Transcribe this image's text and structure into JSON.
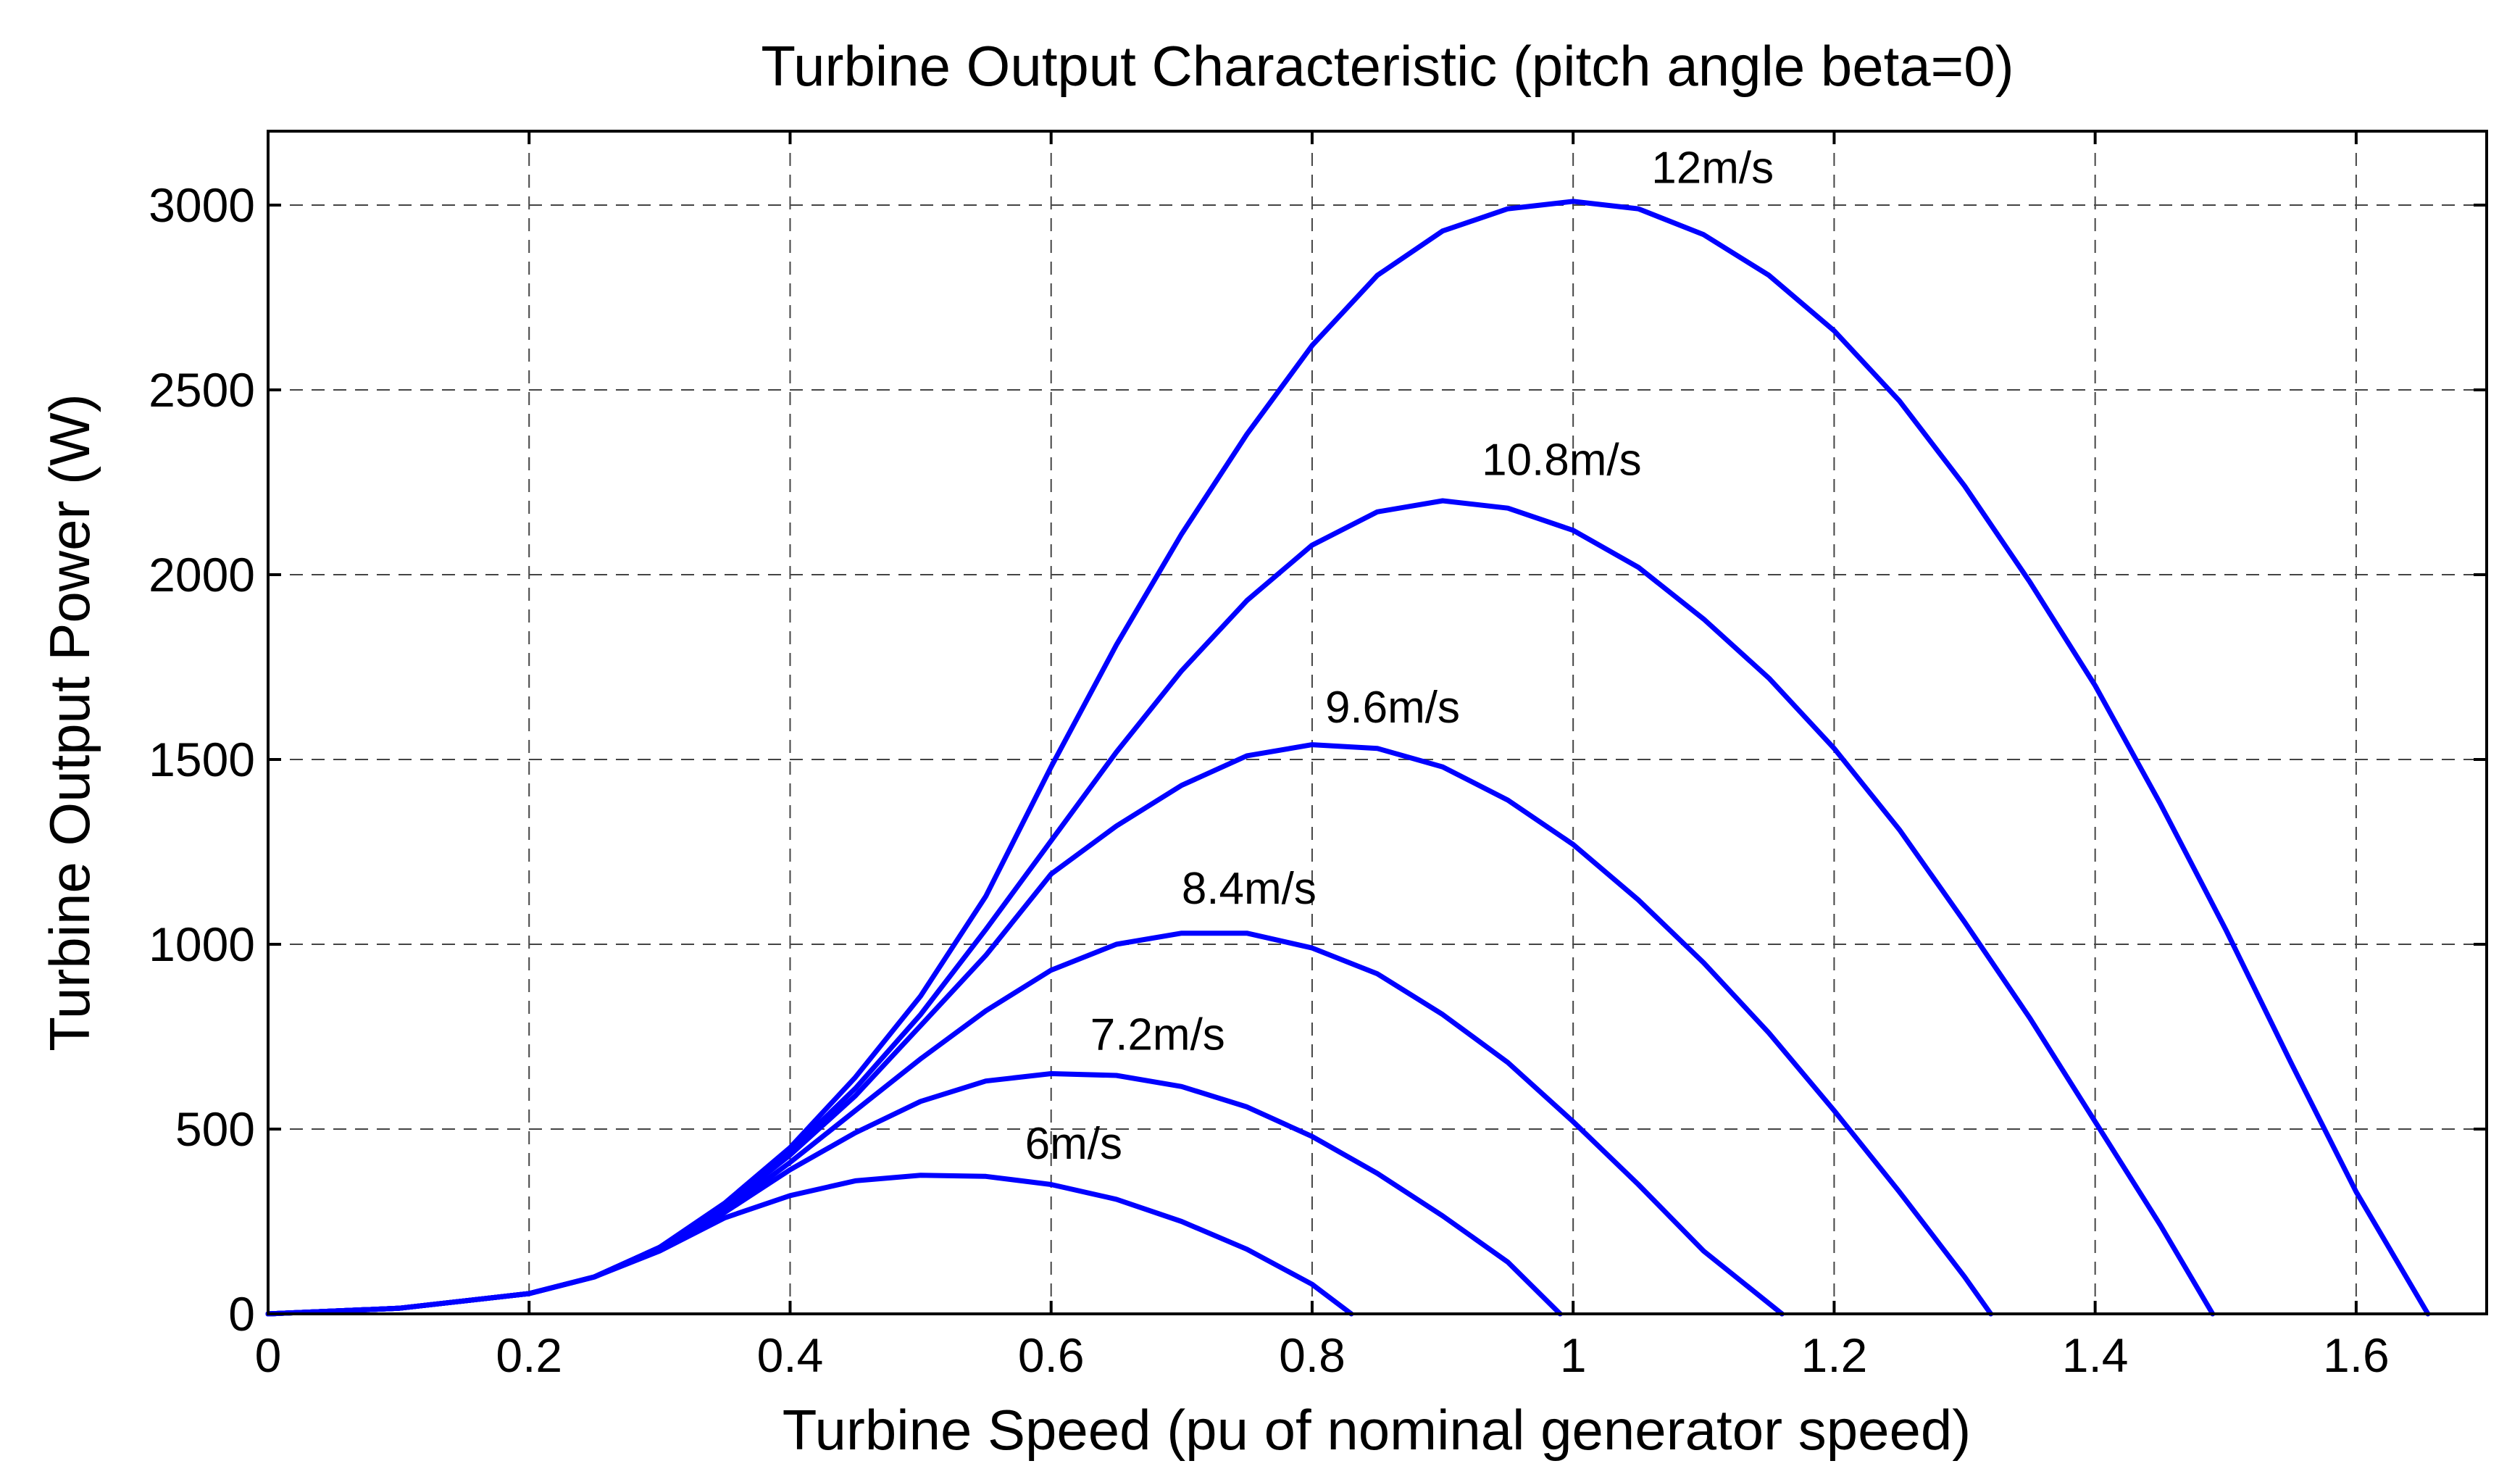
{
  "chart_data": {
    "type": "line",
    "title": "Turbine Output Characteristic (pitch angle beta=0)",
    "xlabel": "Turbine Speed (pu of nominal generator speed)",
    "ylabel": "Turbine Output Power (W)",
    "xlim": [
      0,
      1.7
    ],
    "ylim": [
      0,
      3200
    ],
    "xticks": [
      0,
      0.2,
      0.4,
      0.6,
      0.8,
      1.0,
      1.2,
      1.4,
      1.6
    ],
    "xtick_labels": [
      "0",
      "0.2",
      "0.4",
      "0.6",
      "0.8",
      "1",
      "1.2",
      "1.4",
      "1.6"
    ],
    "yticks": [
      0,
      500,
      1000,
      1500,
      2000,
      2500,
      3000
    ],
    "ytick_labels": [
      "0",
      "500",
      "1000",
      "1500",
      "2000",
      "2500",
      "3000"
    ],
    "grid": true,
    "line_color": "#0000ff",
    "series": [
      {
        "name": "6m/s",
        "label_at": [
          0.58,
          420
        ],
        "points": [
          [
            0,
            0
          ],
          [
            0.1,
            15
          ],
          [
            0.2,
            55
          ],
          [
            0.25,
            100
          ],
          [
            0.3,
            170
          ],
          [
            0.35,
            260
          ],
          [
            0.4,
            320
          ],
          [
            0.45,
            360
          ],
          [
            0.5,
            375
          ],
          [
            0.55,
            372
          ],
          [
            0.6,
            350
          ],
          [
            0.65,
            310
          ],
          [
            0.7,
            250
          ],
          [
            0.75,
            175
          ],
          [
            0.8,
            80
          ],
          [
            0.83,
            0
          ]
        ]
      },
      {
        "name": "7.2m/s",
        "label_at": [
          0.63,
          715
        ],
        "points": [
          [
            0,
            0
          ],
          [
            0.1,
            15
          ],
          [
            0.2,
            55
          ],
          [
            0.25,
            100
          ],
          [
            0.3,
            175
          ],
          [
            0.35,
            275
          ],
          [
            0.4,
            390
          ],
          [
            0.45,
            490
          ],
          [
            0.5,
            575
          ],
          [
            0.55,
            630
          ],
          [
            0.6,
            650
          ],
          [
            0.65,
            645
          ],
          [
            0.7,
            615
          ],
          [
            0.75,
            560
          ],
          [
            0.8,
            480
          ],
          [
            0.85,
            380
          ],
          [
            0.9,
            265
          ],
          [
            0.95,
            140
          ],
          [
            0.99,
            0
          ]
        ]
      },
      {
        "name": "8.4m/s",
        "label_at": [
          0.7,
          1110
        ],
        "points": [
          [
            0,
            0
          ],
          [
            0.1,
            15
          ],
          [
            0.2,
            55
          ],
          [
            0.25,
            100
          ],
          [
            0.3,
            180
          ],
          [
            0.35,
            280
          ],
          [
            0.4,
            410
          ],
          [
            0.45,
            550
          ],
          [
            0.5,
            690
          ],
          [
            0.55,
            820
          ],
          [
            0.6,
            930
          ],
          [
            0.65,
            1000
          ],
          [
            0.7,
            1030
          ],
          [
            0.75,
            1030
          ],
          [
            0.8,
            990
          ],
          [
            0.85,
            920
          ],
          [
            0.9,
            810
          ],
          [
            0.95,
            680
          ],
          [
            1.0,
            520
          ],
          [
            1.05,
            350
          ],
          [
            1.1,
            170
          ],
          [
            1.16,
            0
          ]
        ]
      },
      {
        "name": "9.6m/s",
        "label_at": [
          0.81,
          1600
        ],
        "points": [
          [
            0,
            0
          ],
          [
            0.1,
            15
          ],
          [
            0.2,
            55
          ],
          [
            0.25,
            100
          ],
          [
            0.3,
            180
          ],
          [
            0.35,
            290
          ],
          [
            0.4,
            430
          ],
          [
            0.45,
            590
          ],
          [
            0.5,
            780
          ],
          [
            0.55,
            970
          ],
          [
            0.6,
            1190
          ],
          [
            0.65,
            1320
          ],
          [
            0.7,
            1430
          ],
          [
            0.75,
            1510
          ],
          [
            0.8,
            1540
          ],
          [
            0.85,
            1530
          ],
          [
            0.9,
            1480
          ],
          [
            0.95,
            1390
          ],
          [
            1.0,
            1270
          ],
          [
            1.05,
            1120
          ],
          [
            1.1,
            950
          ],
          [
            1.15,
            760
          ],
          [
            1.2,
            550
          ],
          [
            1.25,
            330
          ],
          [
            1.3,
            100
          ],
          [
            1.32,
            0
          ]
        ]
      },
      {
        "name": "10.8m/s",
        "label_at": [
          0.93,
          2270
        ],
        "points": [
          [
            0,
            0
          ],
          [
            0.1,
            15
          ],
          [
            0.2,
            55
          ],
          [
            0.25,
            100
          ],
          [
            0.3,
            180
          ],
          [
            0.35,
            295
          ],
          [
            0.4,
            440
          ],
          [
            0.45,
            610
          ],
          [
            0.5,
            810
          ],
          [
            0.55,
            1040
          ],
          [
            0.6,
            1280
          ],
          [
            0.65,
            1520
          ],
          [
            0.7,
            1740
          ],
          [
            0.75,
            1930
          ],
          [
            0.8,
            2080
          ],
          [
            0.85,
            2170
          ],
          [
            0.9,
            2200
          ],
          [
            0.95,
            2180
          ],
          [
            1.0,
            2120
          ],
          [
            1.05,
            2020
          ],
          [
            1.1,
            1880
          ],
          [
            1.15,
            1720
          ],
          [
            1.2,
            1530
          ],
          [
            1.25,
            1310
          ],
          [
            1.3,
            1060
          ],
          [
            1.35,
            800
          ],
          [
            1.4,
            520
          ],
          [
            1.45,
            240
          ],
          [
            1.49,
            0
          ]
        ]
      },
      {
        "name": "12m/s",
        "label_at": [
          1.06,
          3060
        ],
        "points": [
          [
            0,
            0
          ],
          [
            0.1,
            15
          ],
          [
            0.2,
            55
          ],
          [
            0.25,
            100
          ],
          [
            0.3,
            180
          ],
          [
            0.35,
            300
          ],
          [
            0.4,
            450
          ],
          [
            0.45,
            640
          ],
          [
            0.5,
            860
          ],
          [
            0.55,
            1130
          ],
          [
            0.6,
            1480
          ],
          [
            0.65,
            1810
          ],
          [
            0.7,
            2110
          ],
          [
            0.75,
            2380
          ],
          [
            0.8,
            2620
          ],
          [
            0.85,
            2810
          ],
          [
            0.9,
            2930
          ],
          [
            0.95,
            2990
          ],
          [
            1.0,
            3010
          ],
          [
            1.05,
            2990
          ],
          [
            1.1,
            2920
          ],
          [
            1.15,
            2810
          ],
          [
            1.2,
            2660
          ],
          [
            1.25,
            2470
          ],
          [
            1.3,
            2240
          ],
          [
            1.35,
            1980
          ],
          [
            1.4,
            1700
          ],
          [
            1.45,
            1380
          ],
          [
            1.5,
            1040
          ],
          [
            1.55,
            680
          ],
          [
            1.6,
            330
          ],
          [
            1.655,
            0
          ]
        ]
      }
    ]
  }
}
